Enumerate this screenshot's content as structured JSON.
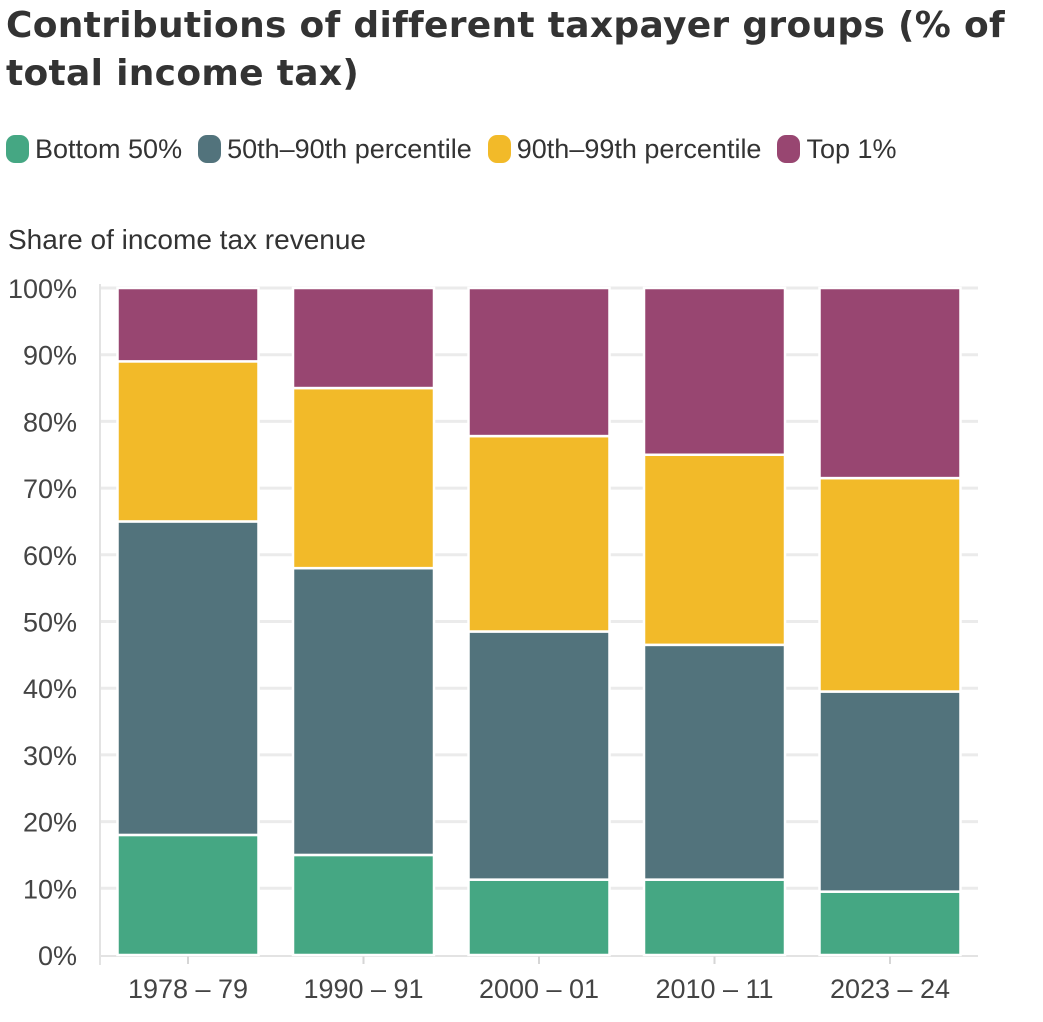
{
  "chart_data": {
    "type": "bar",
    "stacked": true,
    "title": "Contributions of different taxpayer groups (% of total income tax)",
    "ylabel": "Share of income tax revenue",
    "xlabel": "",
    "categories": [
      "1978 – 79",
      "1990 – 91",
      "2000 – 01",
      "2010 – 11",
      "2023 – 24"
    ],
    "series": [
      {
        "name": "Bottom 50%",
        "color": "#45A783",
        "values": [
          18,
          15,
          11.3,
          11.3,
          9.5
        ]
      },
      {
        "name": "50th–90th percentile",
        "color": "#52737C",
        "values": [
          47,
          43,
          37.2,
          35.2,
          30
        ]
      },
      {
        "name": "90th–99th percentile",
        "color": "#F2BA29",
        "values": [
          24,
          27,
          29.3,
          28.5,
          32
        ]
      },
      {
        "name": "Top 1%",
        "color": "#984671",
        "values": [
          11,
          15,
          22.2,
          25,
          28.5
        ]
      }
    ],
    "yticks": [
      {
        "value": 0,
        "label": "0%"
      },
      {
        "value": 10,
        "label": "10%"
      },
      {
        "value": 20,
        "label": "20%"
      },
      {
        "value": 30,
        "label": "30%"
      },
      {
        "value": 40,
        "label": "40%"
      },
      {
        "value": 50,
        "label": "50%"
      },
      {
        "value": 60,
        "label": "60%"
      },
      {
        "value": 70,
        "label": "70%"
      },
      {
        "value": 80,
        "label": "80%"
      },
      {
        "value": 90,
        "label": "90%"
      },
      {
        "value": 100,
        "label": "100%"
      }
    ],
    "ylim": [
      0,
      100
    ],
    "grid": true,
    "legend_position": "top-left"
  }
}
